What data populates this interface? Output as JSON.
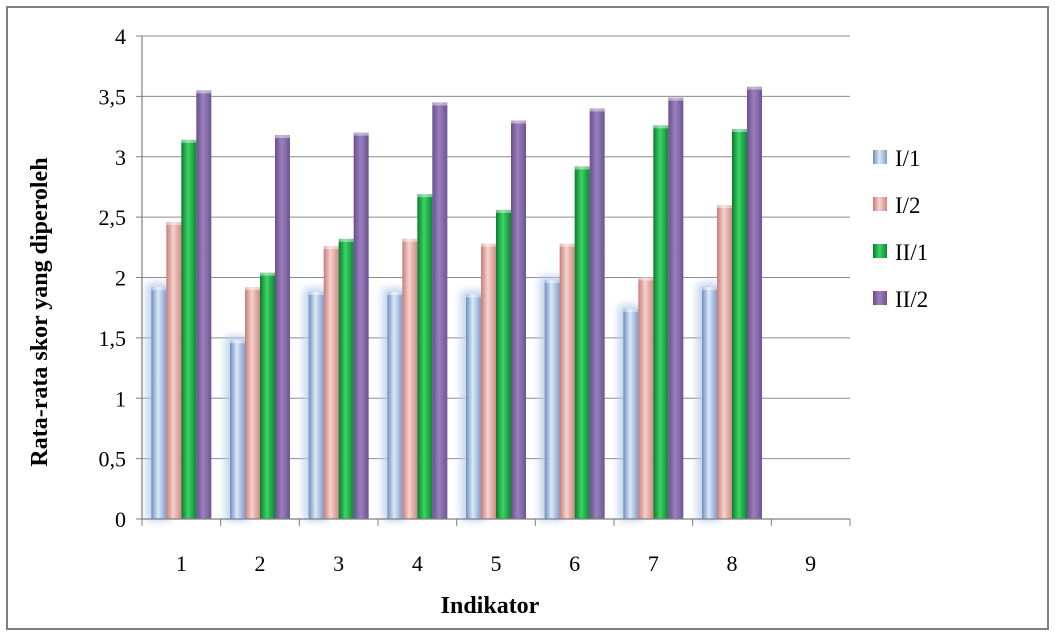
{
  "chart_data": {
    "type": "bar",
    "title": "",
    "xlabel": "Indikator",
    "ylabel": "Rata-rata skor yang diperoleh",
    "categories": [
      "1",
      "2",
      "3",
      "4",
      "5",
      "6",
      "7",
      "8",
      "9"
    ],
    "yticks": [
      "0",
      "0,5",
      "1",
      "1,5",
      "2",
      "2,5",
      "3",
      "3,5",
      "4"
    ],
    "ylim": [
      0,
      4
    ],
    "grid": true,
    "legend_position": "right",
    "series": [
      {
        "name": "I/1",
        "color": "#95b3d7",
        "values": [
          1.92,
          1.48,
          1.88,
          1.88,
          1.86,
          1.98,
          1.74,
          1.92,
          null
        ]
      },
      {
        "name": "I/2",
        "color": "#e6a6a0",
        "values": [
          2.46,
          1.92,
          2.26,
          2.32,
          2.28,
          2.28,
          2.0,
          2.6,
          null
        ]
      },
      {
        "name": "II/1",
        "color": "#1faa45",
        "values": [
          3.14,
          2.04,
          2.32,
          2.69,
          2.56,
          2.92,
          3.26,
          3.23,
          null
        ]
      },
      {
        "name": "II/2",
        "color": "#8064a2",
        "values": [
          3.55,
          3.18,
          3.2,
          3.45,
          3.3,
          3.4,
          3.49,
          3.58,
          null
        ]
      }
    ]
  }
}
